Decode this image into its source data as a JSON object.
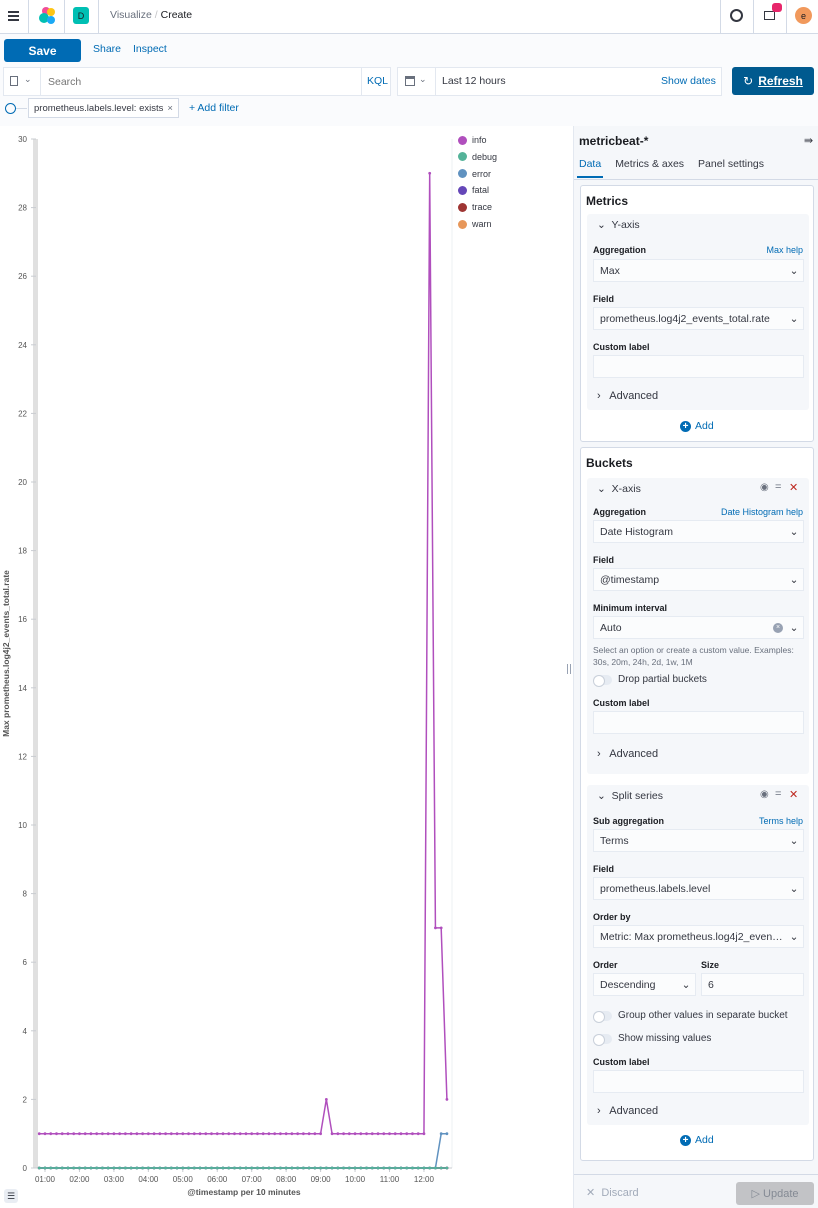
{
  "header": {
    "breadcrumb_parent": "Visualize",
    "breadcrumb_current": "Create",
    "space_initial": "D",
    "user_initial": "e",
    "space_color": "#00bfb3",
    "avatar_color": "#f1995c",
    "badge_color": "#e7266b"
  },
  "toolbar": {
    "save_label": "Save",
    "share_label": "Share",
    "inspect_label": "Inspect"
  },
  "query": {
    "placeholder": "Search",
    "language": "KQL",
    "time_range": "Last 12 hours",
    "show_dates": "Show dates",
    "refresh_label": "Refresh"
  },
  "filters": [
    {
      "label": "prometheus.labels.level: exists"
    }
  ],
  "add_filter": "+ Add filter",
  "panel": {
    "index_pattern": "metricbeat-*",
    "tabs": [
      {
        "label": "Data",
        "active": true
      },
      {
        "label": "Metrics & axes"
      },
      {
        "label": "Panel settings"
      }
    ],
    "metrics": {
      "title": "Metrics",
      "yaxis": {
        "title": "Y-axis",
        "aggregation_label": "Aggregation",
        "help": "Max help",
        "aggregation": "Max",
        "field_label": "Field",
        "field": "prometheus.log4j2_events_total.rate",
        "custom_label": "Custom label",
        "custom_value": "",
        "advanced": "Advanced"
      },
      "add": "Add"
    },
    "buckets": {
      "title": "Buckets",
      "xaxis": {
        "title": "X-axis",
        "aggregation_label": "Aggregation",
        "help": "Date Histogram help",
        "aggregation": "Date Histogram",
        "field_label": "Field",
        "field": "@timestamp",
        "interval_label": "Minimum interval",
        "interval": "Auto",
        "interval_hint": "Select an option or create a custom value. Examples: 30s, 20m, 24h, 2d, 1w, 1M",
        "drop_partial": "Drop partial buckets",
        "drop_partial_on": false,
        "custom_label": "Custom label",
        "advanced": "Advanced"
      },
      "split": {
        "title": "Split series",
        "aggregation_label": "Sub aggregation",
        "help": "Terms help",
        "aggregation": "Terms",
        "field_label": "Field",
        "field": "prometheus.labels.level",
        "order_by_label": "Order by",
        "order_by": "Metric: Max prometheus.log4j2_events_total.rate",
        "order_label": "Order",
        "order": "Descending",
        "size_label": "Size",
        "size": "6",
        "group_other": "Group other values in separate bucket",
        "group_other_on": false,
        "show_missing": "Show missing values",
        "show_missing_on": false,
        "custom_label": "Custom label",
        "advanced": "Advanced"
      },
      "add": "Add"
    },
    "discard": "Discard",
    "update": "Update"
  },
  "chart_data": {
    "type": "line",
    "xlabel": "@timestamp per 10 minutes",
    "ylabel": "Max prometheus.log4j2_events_total.rate",
    "ylim": [
      0,
      30
    ],
    "yticks": [
      0,
      2,
      4,
      6,
      8,
      10,
      12,
      14,
      16,
      18,
      20,
      22,
      24,
      26,
      28,
      30
    ],
    "xticks": [
      "01:00",
      "02:00",
      "03:00",
      "04:00",
      "05:00",
      "06:00",
      "07:00",
      "08:00",
      "09:00",
      "10:00",
      "11:00",
      "12:00"
    ],
    "x_start": "00:50",
    "x_interval_minutes": 10,
    "legend_position": "right",
    "series": [
      {
        "name": "info",
        "color": "#b04fbd",
        "values": [
          1,
          1,
          1,
          1,
          1,
          1,
          1,
          1,
          1,
          1,
          1,
          1,
          1,
          1,
          1,
          1,
          1,
          1,
          1,
          1,
          1,
          1,
          1,
          1,
          1,
          1,
          1,
          1,
          1,
          1,
          1,
          1,
          1,
          1,
          1,
          1,
          1,
          1,
          1,
          1,
          1,
          1,
          1,
          1,
          1,
          1,
          1,
          1,
          1,
          1,
          2,
          1,
          1,
          1,
          1,
          1,
          1,
          1,
          1,
          1,
          1,
          1,
          1,
          1,
          1,
          1,
          1,
          1,
          29,
          7,
          7,
          2
        ]
      },
      {
        "name": "debug",
        "color": "#54b399",
        "values": [
          0,
          0,
          0,
          0,
          0,
          0,
          0,
          0,
          0,
          0,
          0,
          0,
          0,
          0,
          0,
          0,
          0,
          0,
          0,
          0,
          0,
          0,
          0,
          0,
          0,
          0,
          0,
          0,
          0,
          0,
          0,
          0,
          0,
          0,
          0,
          0,
          0,
          0,
          0,
          0,
          0,
          0,
          0,
          0,
          0,
          0,
          0,
          0,
          0,
          0,
          0,
          0,
          0,
          0,
          0,
          0,
          0,
          0,
          0,
          0,
          0,
          0,
          0,
          0,
          0,
          0,
          0,
          0,
          0,
          0,
          0,
          0
        ]
      },
      {
        "name": "error",
        "color": "#6092c0",
        "values": [
          0,
          0,
          0,
          0,
          0,
          0,
          0,
          0,
          0,
          0,
          0,
          0,
          0,
          0,
          0,
          0,
          0,
          0,
          0,
          0,
          0,
          0,
          0,
          0,
          0,
          0,
          0,
          0,
          0,
          0,
          0,
          0,
          0,
          0,
          0,
          0,
          0,
          0,
          0,
          0,
          0,
          0,
          0,
          0,
          0,
          0,
          0,
          0,
          0,
          0,
          0,
          0,
          0,
          0,
          0,
          0,
          0,
          0,
          0,
          0,
          0,
          0,
          0,
          0,
          0,
          0,
          0,
          0,
          0,
          0,
          1,
          1
        ]
      },
      {
        "name": "fatal",
        "color": "#6547b8",
        "values": [
          0,
          0,
          0,
          0,
          0,
          0,
          0,
          0,
          0,
          0,
          0,
          0,
          0,
          0,
          0,
          0,
          0,
          0,
          0,
          0,
          0,
          0,
          0,
          0,
          0,
          0,
          0,
          0,
          0,
          0,
          0,
          0,
          0,
          0,
          0,
          0,
          0,
          0,
          0,
          0,
          0,
          0,
          0,
          0,
          0,
          0,
          0,
          0,
          0,
          0,
          0,
          0,
          0,
          0,
          0,
          0,
          0,
          0,
          0,
          0,
          0,
          0,
          0,
          0,
          0,
          0,
          0,
          0,
          0,
          0,
          0,
          0
        ]
      },
      {
        "name": "trace",
        "color": "#9e3533",
        "values": [
          0,
          0,
          0,
          0,
          0,
          0,
          0,
          0,
          0,
          0,
          0,
          0,
          0,
          0,
          0,
          0,
          0,
          0,
          0,
          0,
          0,
          0,
          0,
          0,
          0,
          0,
          0,
          0,
          0,
          0,
          0,
          0,
          0,
          0,
          0,
          0,
          0,
          0,
          0,
          0,
          0,
          0,
          0,
          0,
          0,
          0,
          0,
          0,
          0,
          0,
          0,
          0,
          0,
          0,
          0,
          0,
          0,
          0,
          0,
          0,
          0,
          0,
          0,
          0,
          0,
          0,
          0,
          0,
          0,
          0,
          0,
          0
        ]
      },
      {
        "name": "warn",
        "color": "#e7975a",
        "values": [
          0,
          0,
          0,
          0,
          0,
          0,
          0,
          0,
          0,
          0,
          0,
          0,
          0,
          0,
          0,
          0,
          0,
          0,
          0,
          0,
          0,
          0,
          0,
          0,
          0,
          0,
          0,
          0,
          0,
          0,
          0,
          0,
          0,
          0,
          0,
          0,
          0,
          0,
          0,
          0,
          0,
          0,
          0,
          0,
          0,
          0,
          0,
          0,
          0,
          0,
          0,
          0,
          0,
          0,
          0,
          0,
          0,
          0,
          0,
          0,
          0,
          0,
          0,
          0,
          0,
          0,
          0,
          0,
          0,
          0,
          0,
          0
        ]
      }
    ]
  }
}
